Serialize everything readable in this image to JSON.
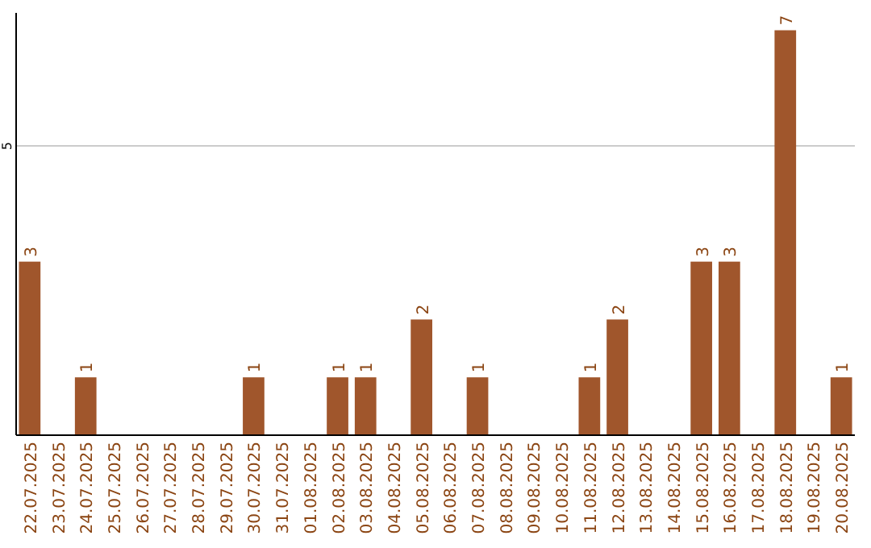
{
  "chart_data": {
    "type": "bar",
    "categories": [
      "22.07.2025",
      "23.07.2025",
      "24.07.2025",
      "25.07.2025",
      "26.07.2025",
      "27.07.2025",
      "28.07.2025",
      "29.07.2025",
      "30.07.2025",
      "31.07.2025",
      "01.08.2025",
      "02.08.2025",
      "03.08.2025",
      "04.08.2025",
      "05.08.2025",
      "06.08.2025",
      "07.08.2025",
      "08.08.2025",
      "09.08.2025",
      "10.08.2025",
      "11.08.2025",
      "12.08.2025",
      "13.08.2025",
      "14.08.2025",
      "15.08.2025",
      "16.08.2025",
      "17.08.2025",
      "18.08.2025",
      "19.08.2025",
      "20.08.2025"
    ],
    "values": [
      3,
      0,
      1,
      0,
      0,
      0,
      0,
      0,
      1,
      0,
      0,
      1,
      1,
      0,
      2,
      0,
      1,
      0,
      0,
      0,
      1,
      2,
      0,
      0,
      3,
      3,
      0,
      7,
      0,
      1
    ],
    "value_labels": [
      "3",
      null,
      "1",
      null,
      null,
      null,
      null,
      null,
      "1",
      null,
      null,
      "1",
      "1",
      null,
      "2",
      null,
      "1",
      null,
      null,
      null,
      "1",
      "2",
      null,
      null,
      "3",
      "3",
      null,
      "7",
      null,
      "1"
    ],
    "color": "#a0562c",
    "ylim": [
      0,
      7.3
    ],
    "yticks": [
      5
    ],
    "grid": "y"
  }
}
